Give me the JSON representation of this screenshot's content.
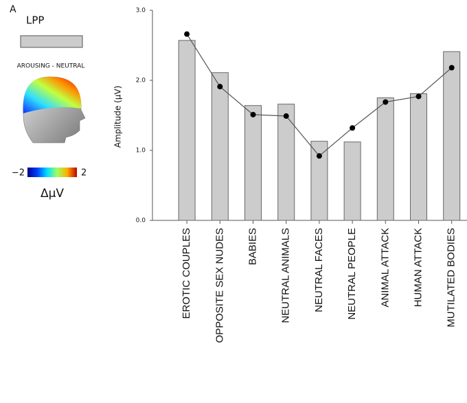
{
  "panel_label": "A",
  "inset": {
    "title": "AROUSING - NEUTRAL",
    "colorbar": {
      "min_label": "−2",
      "max_label": "2",
      "unit": "ΔμV"
    }
  },
  "chart_data": {
    "type": "bar",
    "y_label": "Amplitude (μV)",
    "categories": [
      "EROTIC COUPLES",
      "OPPOSITE SEX NUDES",
      "BABIES",
      "NEUTRAL ANIMALS",
      "NEUTRAL FACES",
      "NEUTRAL PEOPLE",
      "ANIMAL ATTACK",
      "HUMAN ATTACK",
      "MUTILATED BODIES"
    ],
    "series": [
      {
        "name": "LPP",
        "type": "bar",
        "color": "#cccccc",
        "values": [
          2.57,
          2.11,
          1.64,
          1.66,
          1.13,
          1.12,
          1.75,
          1.81,
          2.41
        ]
      },
      {
        "type": "line",
        "color": "#555555",
        "marker_color": "#000000",
        "values": [
          2.66,
          1.91,
          1.51,
          1.49,
          0.92,
          1.32,
          1.69,
          1.77,
          2.18
        ]
      }
    ],
    "ylim": [
      0,
      3
    ],
    "yticks": [
      {
        "value": 0,
        "label": "0.0"
      },
      {
        "value": 1,
        "label": "1.0"
      },
      {
        "value": 2,
        "label": "2.0"
      },
      {
        "value": 3,
        "label": "3.0"
      }
    ],
    "grid": false
  }
}
